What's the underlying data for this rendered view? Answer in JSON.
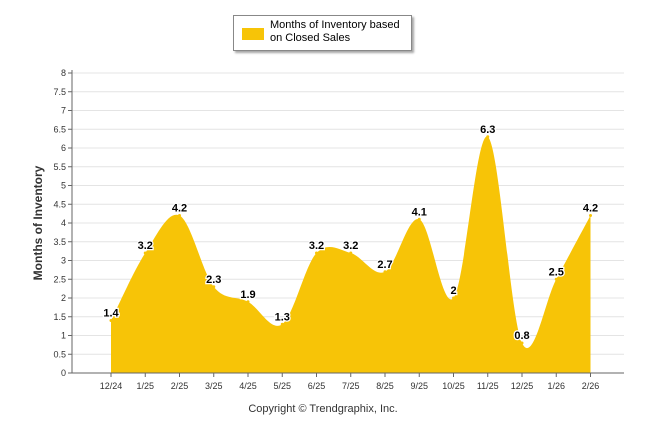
{
  "chart_data": {
    "type": "area",
    "title": "",
    "ylabel": "Months of Inventory",
    "xlabel": "",
    "ylim": [
      0,
      8
    ],
    "yticks": [
      "0",
      "0.5",
      "1",
      "1.5",
      "2",
      "2.5",
      "3",
      "3.5",
      "4",
      "4.5",
      "5",
      "5.5",
      "6",
      "6.5",
      "7",
      "7.5",
      "8"
    ],
    "categories": [
      "12/24",
      "1/25",
      "2/25",
      "3/25",
      "4/25",
      "5/25",
      "6/25",
      "7/25",
      "8/25",
      "9/25",
      "10/25",
      "11/25",
      "12/25",
      "1/26",
      "2/26"
    ],
    "series": [
      {
        "name": "Months of Inventory based on Closed Sales",
        "values": [
          1.4,
          3.2,
          4.2,
          2.3,
          1.9,
          1.3,
          3.2,
          3.2,
          2.7,
          4.1,
          2,
          6.3,
          0.8,
          2.5,
          4.2
        ],
        "data_labels": [
          "1.4",
          "3.2",
          "4.2",
          "2.3",
          "1.9",
          "1.3",
          "3.2",
          "3.2",
          "2.7",
          "4.1",
          "2",
          "6.3",
          "0.8",
          "2.5",
          "4.2"
        ],
        "color": "#f7c407"
      }
    ],
    "grid": true,
    "legend_position": "top-center"
  },
  "legend": {
    "label": "Months of Inventory based on Closed Sales"
  },
  "footer": {
    "copyright": "Copyright © Trendgraphix, Inc."
  }
}
